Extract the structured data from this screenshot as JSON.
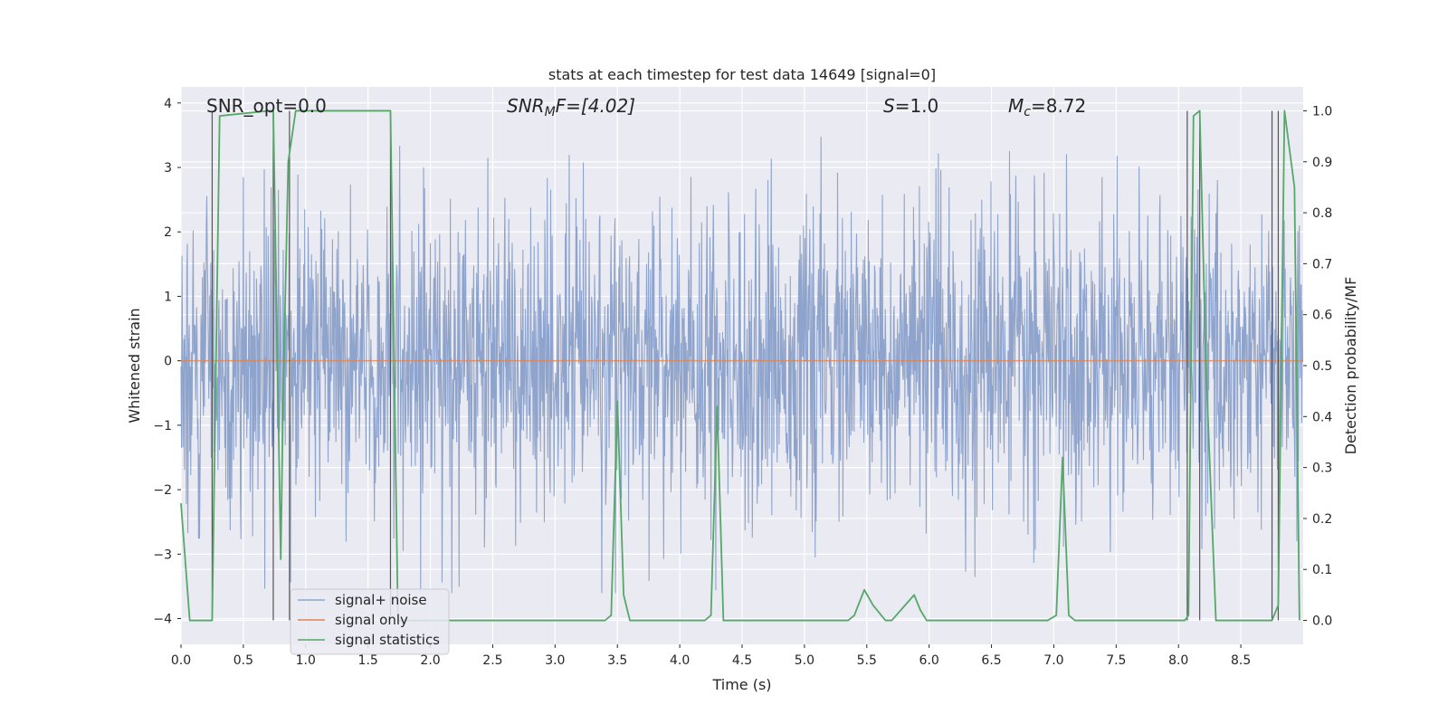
{
  "chart_data": {
    "type": "line",
    "title": "stats at each timestep for test data 14649 [signal=0]",
    "xlabel": "Time (s)",
    "ylabel": "Whitened strain",
    "y2label": "Detection probability/MF",
    "xlim": [
      0.0,
      9.0
    ],
    "ylim": [
      -4.4,
      4.25
    ],
    "y2lim": [
      -0.047,
      1.047
    ],
    "xticks": [
      0.0,
      0.5,
      1.0,
      1.5,
      2.0,
      2.5,
      3.0,
      3.5,
      4.0,
      4.5,
      5.0,
      5.5,
      6.0,
      6.5,
      7.0,
      7.5,
      8.0,
      8.5
    ],
    "xtick_labels": [
      "0.0",
      "0.5",
      "1.0",
      "1.5",
      "2.0",
      "2.5",
      "3.0",
      "3.5",
      "4.0",
      "4.5",
      "5.0",
      "5.5",
      "6.0",
      "6.5",
      "7.0",
      "7.5",
      "8.0",
      "8.5"
    ],
    "yticks": [
      -4,
      -3,
      -2,
      -1,
      0,
      1,
      2,
      3,
      4
    ],
    "ytick_labels": [
      "−4",
      "−3",
      "−2",
      "−1",
      "0",
      "1",
      "2",
      "3",
      "4"
    ],
    "y2ticks": [
      0.0,
      0.1,
      0.2,
      0.3,
      0.4,
      0.5,
      0.6,
      0.7,
      0.8,
      0.9,
      1.0
    ],
    "y2tick_labels": [
      "0.0",
      "0.1",
      "0.2",
      "0.3",
      "0.4",
      "0.5",
      "0.6",
      "0.7",
      "0.8",
      "0.9",
      "1.0"
    ],
    "annotations": {
      "snr_opt": "SNR_opt=0.0",
      "snr_mf_prefix": "SNR",
      "snr_mf_sub": "M",
      "snr_mf_suffix": "F=[4.02]",
      "s_prefix": "S",
      "s_suffix": "=1.0",
      "mc_prefix": "M",
      "mc_sub": "c",
      "mc_suffix": "=8.72"
    },
    "legend": {
      "placement": "lower-left",
      "entries": [
        "signal+ noise",
        "signal only",
        "signal statistics"
      ]
    },
    "colors": {
      "noise": "#8fa4cc",
      "signal_only": "#dd8452",
      "statistics": "#55a868",
      "vlines": "#555555",
      "plot_bg": "#eaeaf2",
      "grid": "#ffffff"
    },
    "series": [
      {
        "name": "signal+ noise",
        "kind": "noisy-strain",
        "sample_rate_hz": 256,
        "approx_peak_upper": 3.6,
        "approx_peak_lower": -3.6,
        "typical_band": [
          -2.2,
          2.2
        ]
      },
      {
        "name": "signal only",
        "kind": "constant",
        "value": 0.0
      },
      {
        "name": "signal statistics",
        "axis": "right",
        "x": [
          0.0,
          0.07,
          0.15,
          0.25,
          0.31,
          0.7,
          0.74,
          0.8,
          0.82,
          0.86,
          0.92,
          0.95,
          1.3,
          1.6,
          1.68,
          1.74,
          1.9,
          2.0,
          3.4,
          3.45,
          3.5,
          3.55,
          3.6,
          3.7,
          4.0,
          4.2,
          4.25,
          4.3,
          4.35,
          4.4,
          4.5,
          5.0,
          5.35,
          5.4,
          5.48,
          5.55,
          5.65,
          5.7,
          5.88,
          5.93,
          5.98,
          6.05,
          6.95,
          7.02,
          7.07,
          7.12,
          7.17,
          8.05,
          8.08,
          8.12,
          8.17,
          8.22,
          8.3,
          8.75,
          8.8,
          8.85,
          8.93,
          8.97
        ],
        "y": [
          0.23,
          0.0,
          0.0,
          0.0,
          0.99,
          1.0,
          1.0,
          0.12,
          0.45,
          0.9,
          1.0,
          1.0,
          1.0,
          1.0,
          1.0,
          0.0,
          0.0,
          0.0,
          0.0,
          0.01,
          0.43,
          0.05,
          0.0,
          0.0,
          0.0,
          0.0,
          0.01,
          0.42,
          0.0,
          0.0,
          0.0,
          0.0,
          0.0,
          0.01,
          0.06,
          0.03,
          0.0,
          0.0,
          0.05,
          0.02,
          0.0,
          0.0,
          0.0,
          0.01,
          0.32,
          0.01,
          0.0,
          0.0,
          0.01,
          0.99,
          1.0,
          0.5,
          0.0,
          0.0,
          0.03,
          1.0,
          0.85,
          0.0
        ]
      }
    ],
    "vertical_lines_x": [
      0.25,
      0.74,
      0.87,
      1.68,
      8.07,
      8.17,
      8.75,
      8.8
    ]
  }
}
